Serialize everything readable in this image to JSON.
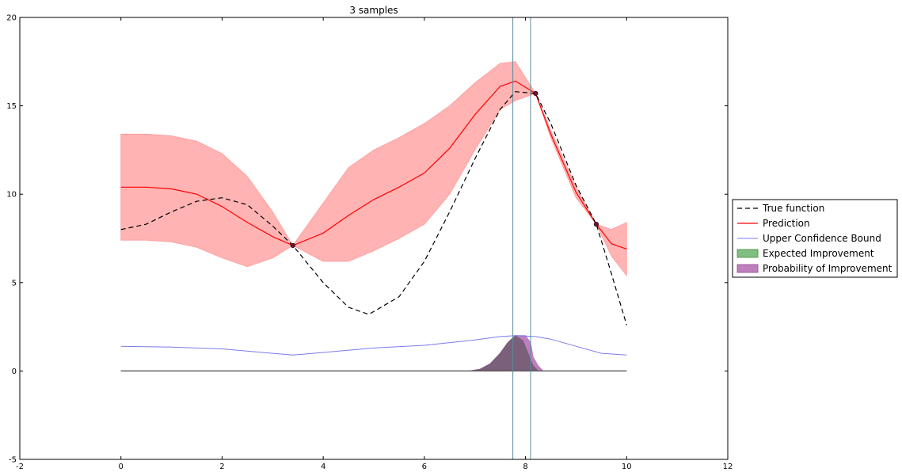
{
  "chart_data": {
    "type": "line",
    "title": "3 samples",
    "xlabel": "",
    "ylabel": "",
    "xlim": [
      -2,
      12
    ],
    "ylim": [
      -5,
      20
    ],
    "xticks": [
      -2,
      0,
      2,
      4,
      6,
      8,
      10,
      12
    ],
    "yticks": [
      -5,
      0,
      5,
      10,
      15,
      20
    ],
    "grid": false,
    "legend_placement": "outside right",
    "colors": {
      "true_function": "#000000",
      "prediction": "#ff0000",
      "confidence_band": "#ffb3b3",
      "ucb": "#7b7bee",
      "expected_improvement": "#7fbf7f",
      "probability_improvement": "#bf7fbf",
      "overlap": "#7a607a",
      "vertical_lines": "#5a8a9a",
      "sample_points": "#7a1030"
    },
    "series": [
      {
        "name": "True function",
        "style": "dashed",
        "x": [
          0,
          0.5,
          1,
          1.5,
          2,
          2.5,
          3,
          3.4,
          4,
          4.5,
          4.9,
          5.5,
          6,
          6.5,
          7,
          7.5,
          7.8,
          8.2,
          8.5,
          9,
          9.4,
          9.7,
          10
        ],
        "y": [
          8.0,
          8.3,
          9.0,
          9.6,
          9.8,
          9.4,
          8.2,
          7.1,
          5.0,
          3.6,
          3.2,
          4.2,
          6.2,
          9.0,
          12.0,
          14.8,
          15.8,
          15.7,
          14.0,
          10.5,
          8.3,
          5.5,
          2.6
        ]
      },
      {
        "name": "Prediction",
        "x": [
          0,
          0.5,
          1,
          1.5,
          2,
          2.5,
          3,
          3.4,
          4,
          4.5,
          5,
          5.5,
          6,
          6.5,
          7,
          7.5,
          7.8,
          8.2,
          8.5,
          9,
          9.4,
          9.7,
          10
        ],
        "y": [
          10.4,
          10.4,
          10.3,
          10.0,
          9.3,
          8.4,
          7.6,
          7.1,
          7.8,
          8.8,
          9.7,
          10.4,
          11.2,
          12.6,
          14.5,
          16.1,
          16.4,
          15.7,
          13.4,
          10.1,
          8.3,
          7.2,
          6.9
        ]
      },
      {
        "name": "Upper Confidence Bound",
        "x": [
          0,
          1,
          2,
          3,
          3.4,
          4,
          5,
          6,
          7,
          7.5,
          7.8,
          8.2,
          8.5,
          9,
          9.5,
          10
        ],
        "y": [
          1.4,
          1.35,
          1.25,
          1.0,
          0.9,
          1.05,
          1.3,
          1.45,
          1.75,
          1.95,
          2.0,
          1.95,
          1.8,
          1.4,
          1.0,
          0.9
        ]
      },
      {
        "name": "Expected Improvement",
        "type": "area",
        "x": [
          0,
          6.9,
          7.1,
          7.3,
          7.5,
          7.65,
          7.8,
          7.95,
          8.05,
          8.15,
          8.25,
          10
        ],
        "y": [
          0,
          0,
          0.1,
          0.4,
          1.0,
          1.6,
          2.0,
          1.7,
          1.0,
          0.3,
          0,
          0
        ]
      },
      {
        "name": "Probability of Improvement",
        "type": "area",
        "x": [
          0,
          6.9,
          7.1,
          7.3,
          7.5,
          7.65,
          7.8,
          8.0,
          8.1,
          8.15,
          8.25,
          8.35,
          10
        ],
        "y": [
          0,
          0,
          0.1,
          0.4,
          1.0,
          1.6,
          2.0,
          2.0,
          1.6,
          0.8,
          0.3,
          0,
          0
        ]
      }
    ],
    "confidence_band": {
      "x": [
        0,
        0.5,
        1,
        1.5,
        2,
        2.5,
        3,
        3.4,
        4,
        4.5,
        5,
        5.5,
        6,
        6.5,
        7,
        7.5,
        7.8,
        8.2,
        8.5,
        9,
        9.4,
        9.7,
        10
      ],
      "upper": [
        13.4,
        13.4,
        13.3,
        13.0,
        12.3,
        11.0,
        9.0,
        7.1,
        9.5,
        11.5,
        12.5,
        13.2,
        14.0,
        15.0,
        16.3,
        17.4,
        17.5,
        15.7,
        13.6,
        10.4,
        8.3,
        8.0,
        8.4
      ],
      "lower": [
        7.4,
        7.4,
        7.3,
        7.0,
        6.4,
        5.9,
        6.4,
        7.1,
        6.2,
        6.2,
        6.8,
        7.5,
        8.3,
        10.0,
        12.5,
        14.8,
        15.3,
        15.7,
        13.2,
        9.8,
        8.3,
        6.5,
        5.4
      ]
    },
    "samples": {
      "x": [
        3.4,
        8.2,
        9.4
      ],
      "y": [
        7.1,
        15.7,
        8.3
      ]
    },
    "vertical_lines_x": [
      7.75,
      8.1
    ],
    "legend": [
      "True function",
      "Prediction",
      "Upper Confidence Bound",
      "Expected Improvement",
      "Probability of Improvement"
    ]
  }
}
